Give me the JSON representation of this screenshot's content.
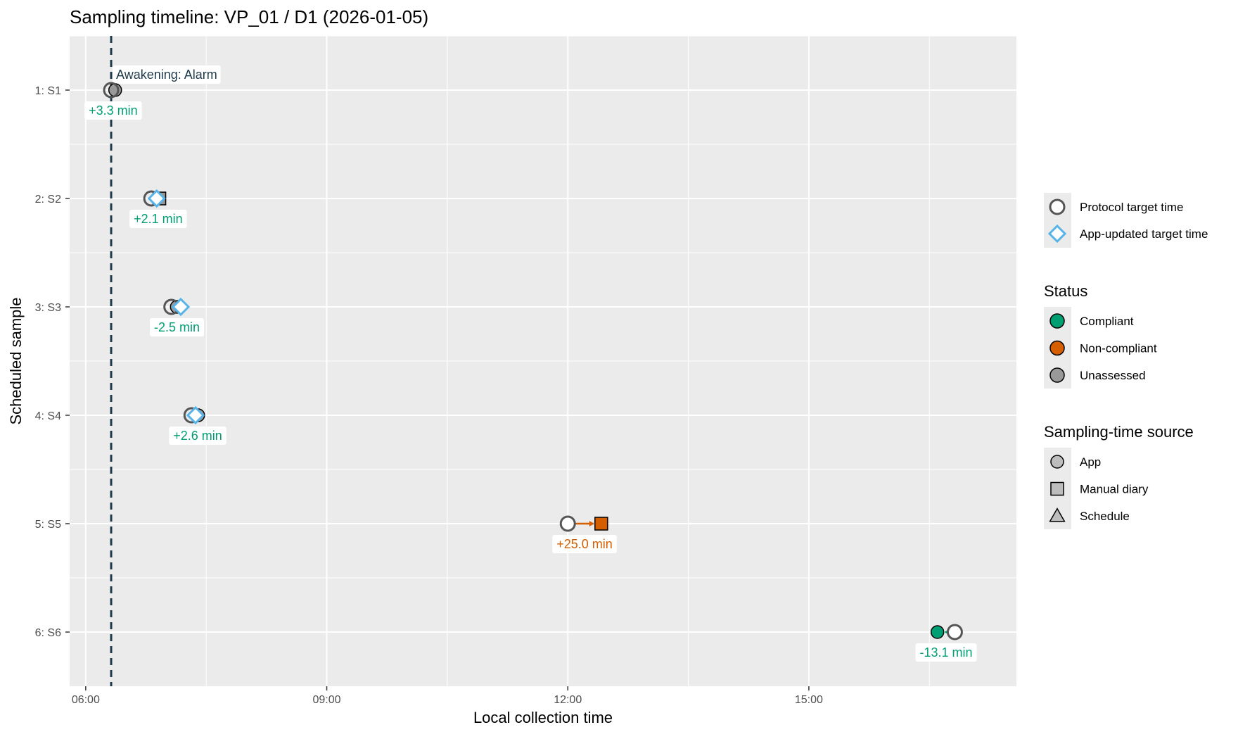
{
  "chart_data": {
    "type": "scatter",
    "title": "Sampling timeline: VP_01 / D1 (2026-01-05)",
    "xlabel": "Local collection time",
    "ylabel": "Scheduled sample",
    "x_unit": "clock time (HH:MM)",
    "xlim": [
      "05:48",
      "17:35"
    ],
    "x_ticks": [
      "06:00",
      "09:00",
      "12:00",
      "15:00"
    ],
    "categories": [
      "1: S1",
      "2: S2",
      "3: S3",
      "4: S4",
      "5: S5",
      "6: S6"
    ],
    "grid": true,
    "legend_position": "right",
    "awakening": {
      "time": "06:19",
      "label": "Awakening: Alarm"
    },
    "samples": [
      {
        "sample": "1: S1",
        "protocol_target": "06:19",
        "app_target": null,
        "collection": "06:22",
        "source": "App",
        "status": "Unassessed",
        "deviation_label": "+3.3 min",
        "deviation_status": "Compliant"
      },
      {
        "sample": "2: S2",
        "protocol_target": "06:49",
        "app_target": "06:53",
        "collection": "06:55",
        "source": "Manual diary",
        "status": "Unassessed",
        "deviation_label": "+2.1 min",
        "deviation_status": "Compliant"
      },
      {
        "sample": "3: S3",
        "protocol_target": "07:04",
        "app_target": "07:11",
        "collection": "07:08",
        "source": "App",
        "status": "Unassessed",
        "deviation_label": "-2.5 min",
        "deviation_status": "Compliant"
      },
      {
        "sample": "4: S4",
        "protocol_target": "07:19",
        "app_target": "07:22",
        "collection": "07:24",
        "source": "App",
        "status": "Unassessed",
        "deviation_label": "+2.6 min",
        "deviation_status": "Compliant"
      },
      {
        "sample": "5: S5",
        "protocol_target": "12:00",
        "app_target": null,
        "collection": "12:25",
        "source": "Manual diary",
        "status": "Non-compliant",
        "deviation_label": "+25.0 min",
        "deviation_status": "Non-compliant"
      },
      {
        "sample": "6: S6",
        "protocol_target": "16:49",
        "app_target": null,
        "collection": "16:36",
        "source": "App",
        "status": "Compliant",
        "deviation_label": "-13.1 min",
        "deviation_status": "Compliant"
      }
    ]
  },
  "legend": {
    "targets": [
      {
        "label": "Protocol target time",
        "shape": "circle-open",
        "color": "#555555"
      },
      {
        "label": "App-updated target time",
        "shape": "diamond-open",
        "color": "#56B4E9"
      }
    ],
    "status": {
      "title": "Status",
      "items": [
        {
          "label": "Compliant",
          "color": "#009E73"
        },
        {
          "label": "Non-compliant",
          "color": "#D55E00"
        },
        {
          "label": "Unassessed",
          "color": "#999999"
        }
      ]
    },
    "source": {
      "title": "Sampling-time source",
      "items": [
        {
          "label": "App",
          "shape": "circle"
        },
        {
          "label": "Manual diary",
          "shape": "square"
        },
        {
          "label": "Schedule",
          "shape": "triangle"
        }
      ]
    }
  },
  "colors": {
    "panel": "#EBEBEB",
    "grid": "#FFFFFF",
    "awakening_line": "#1F3A4A",
    "compliant": "#009E73",
    "non_compliant": "#D55E00",
    "unassessed": "#999999",
    "app_target": "#56B4E9",
    "protocol_target": "#555555"
  }
}
